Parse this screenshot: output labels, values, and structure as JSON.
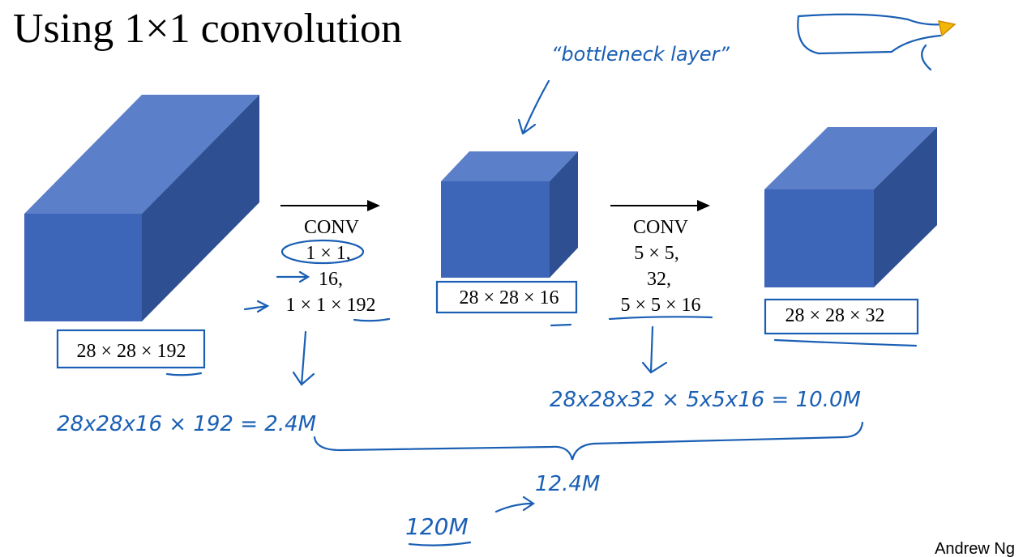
{
  "title": "Using 1×1 convolution",
  "volumes": [
    {
      "label": "28 × 28 × 192"
    },
    {
      "label": "28 × 28 × 16"
    },
    {
      "label": "28 × 28 × 32"
    }
  ],
  "convs": [
    {
      "name": "CONV",
      "filter": "1 × 1,",
      "count": "16,",
      "shape": "1 × 1 × 192"
    },
    {
      "name": "CONV",
      "filter": "5 × 5,",
      "count": "32,",
      "shape": "5 × 5 × 16"
    }
  ],
  "annotations": {
    "bottleneck": "“bottleneck layer”",
    "cost1": "28x28x16 × 192 = 2.4M",
    "cost2": "28x28x32 × 5x5x16 = 10.0M",
    "total": "12.4M",
    "previous": "120M"
  },
  "footer": "Andrew Ng"
}
